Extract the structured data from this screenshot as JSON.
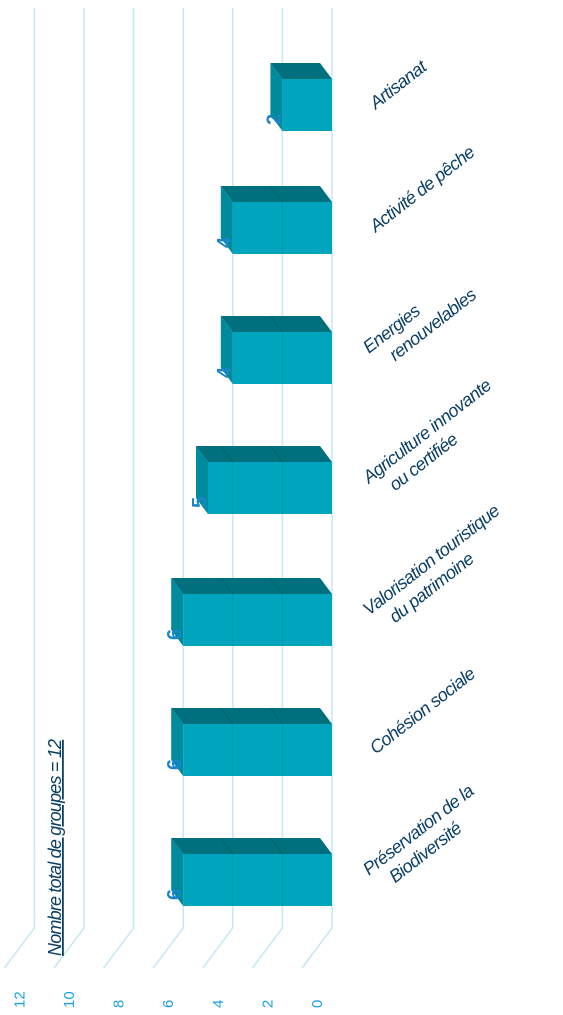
{
  "chart_data": {
    "type": "bar",
    "categories": [
      "Artisanat",
      "Activité de pêche",
      "Energies renouvelables",
      "Agriculture innovante ou certifiée",
      "Valorisation touristique du patrimoine",
      "Cohésion sociale",
      "Préservation de la Biodiversité"
    ],
    "category_lines": [
      [
        "Artisanat"
      ],
      [
        "Activité de pêche"
      ],
      [
        "Energies",
        "renouvelables"
      ],
      [
        "Agriculture innovante",
        "ou certifiée"
      ],
      [
        "Valorisation touristique",
        "du patrimoine"
      ],
      [
        "Cohésion sociale"
      ],
      [
        "Préservation de la",
        "Biodiversité"
      ]
    ],
    "values": [
      2,
      4,
      4,
      5,
      6,
      6,
      6
    ],
    "value_labels": [
      "2",
      "4",
      "4",
      "5",
      "6",
      "6",
      "6"
    ],
    "ticks": [
      "0",
      "2",
      "4",
      "6",
      "8",
      "10",
      "12"
    ],
    "ylim": [
      0,
      12
    ],
    "annotation": "Nombre total de groupes = 12",
    "grid": true,
    "orientation": "rotated 90° counter-clockwise, 3D bars",
    "colors": {
      "bar_front": "#00a5bd",
      "bar_top": "#00707e",
      "grid": "#c8e9f6",
      "tick_text": "#1a9fe0",
      "label_text": "#0a3f66",
      "value_text": "#1a86c8"
    }
  }
}
